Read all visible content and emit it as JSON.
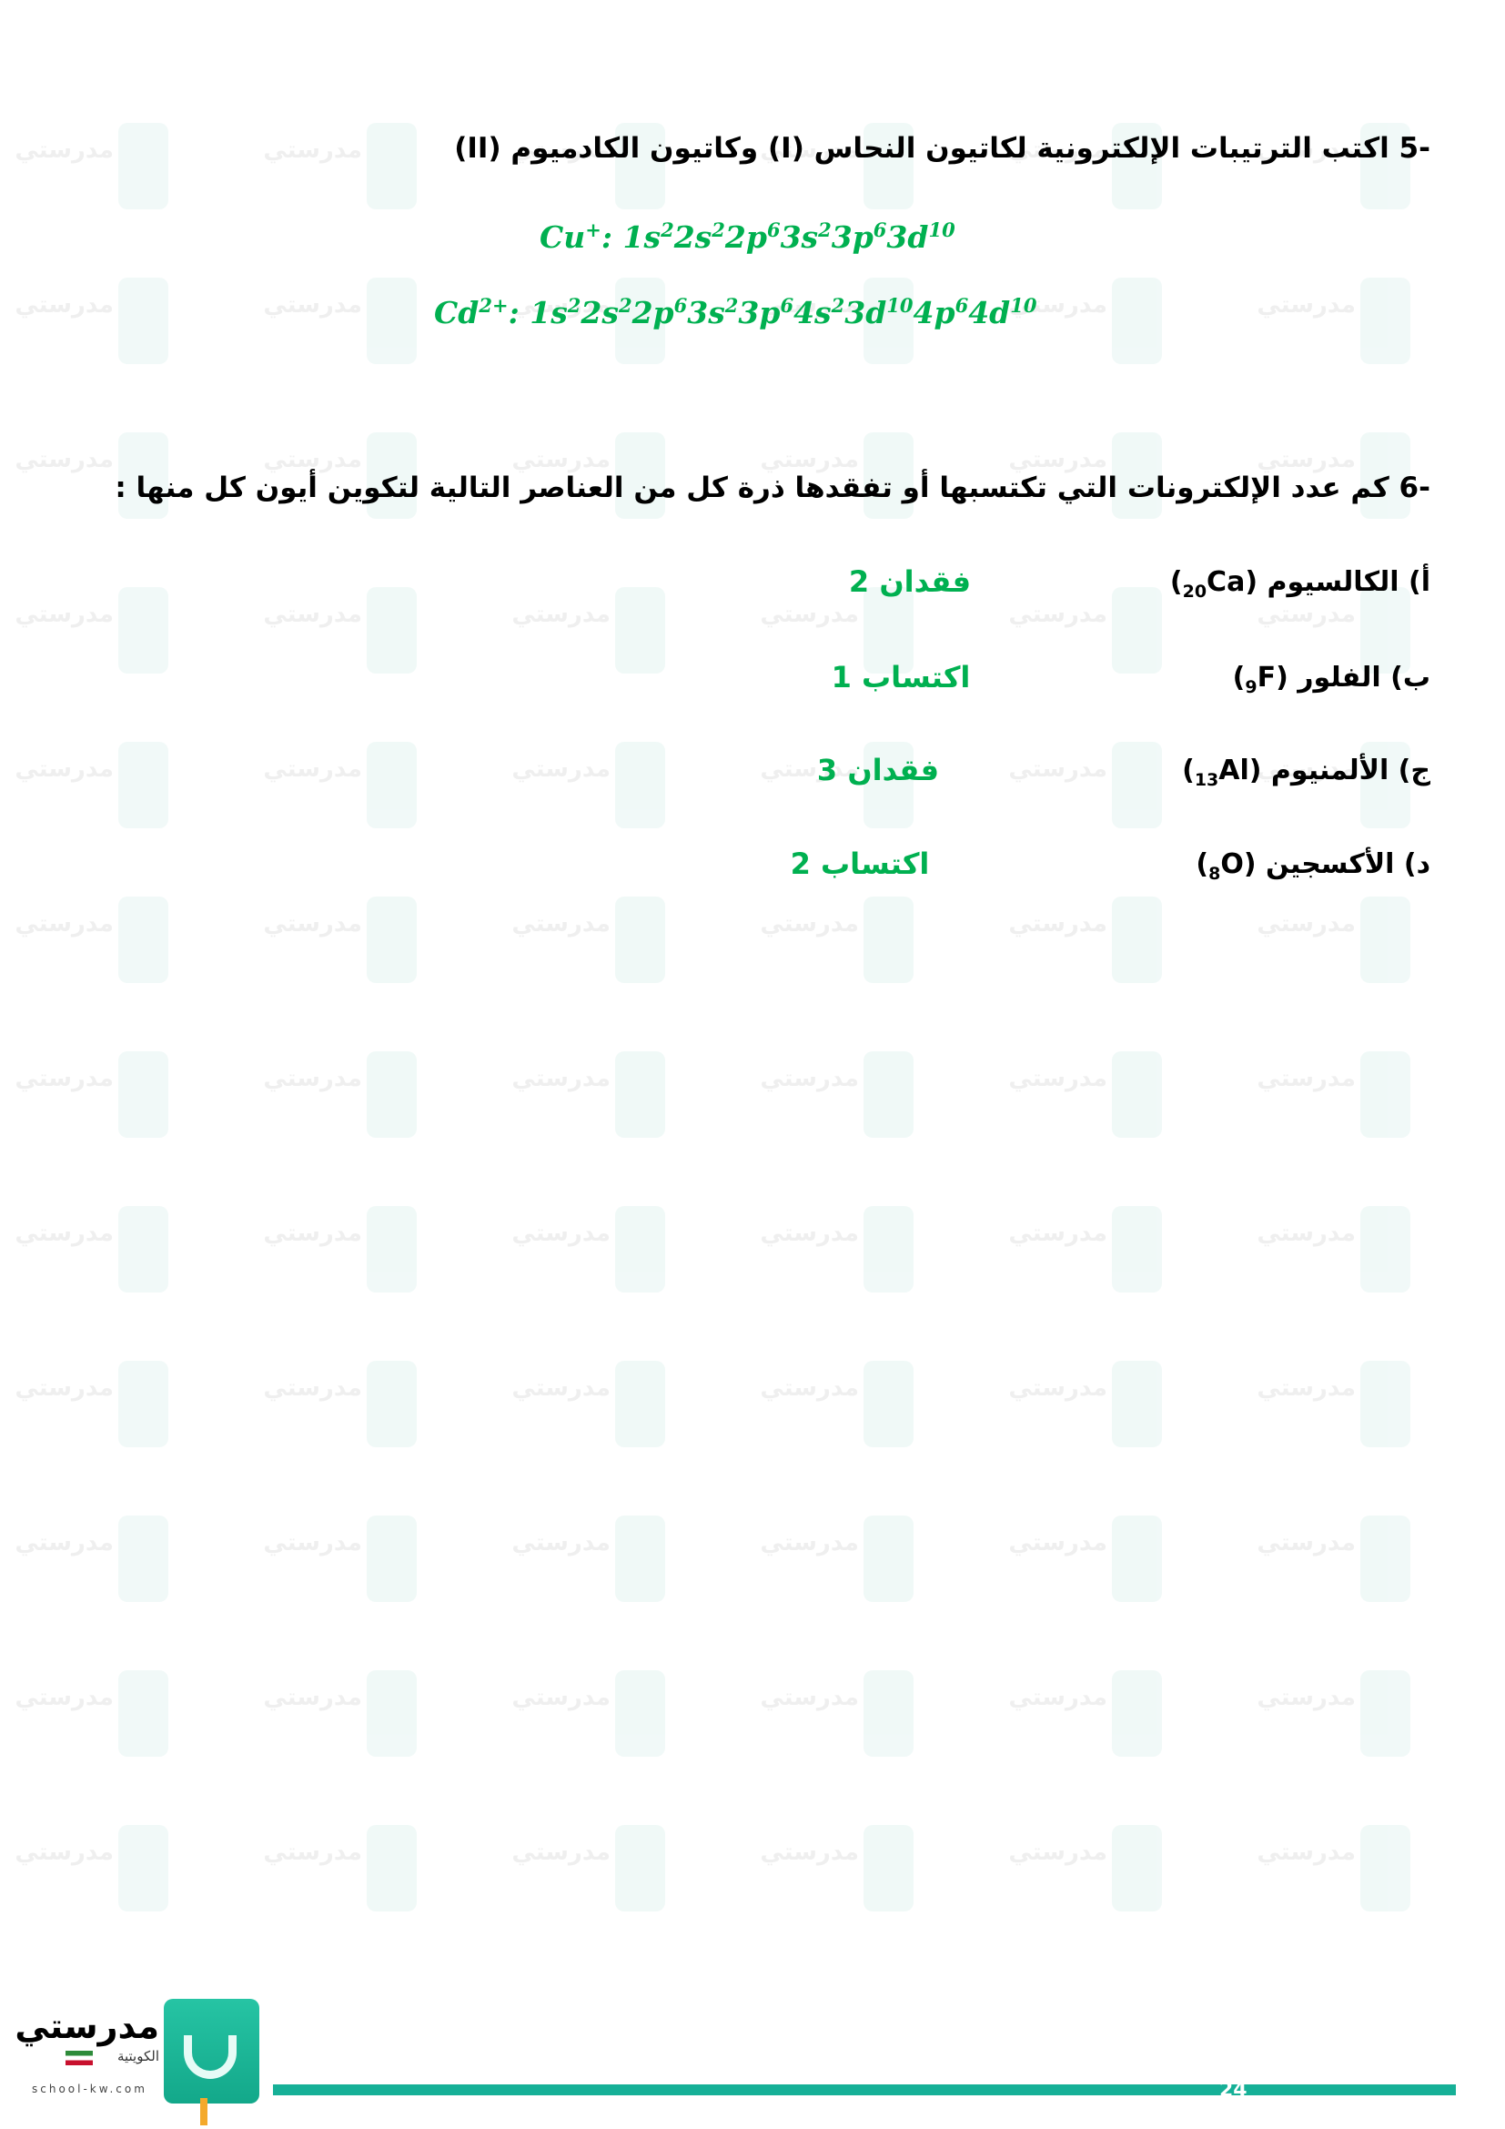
{
  "q5": {
    "number": "-5",
    "text": "اكتب الترتيبات الإلكترونية لكاتيون النحاس (I) وكاتيون الكادميوم (II)",
    "answers": [
      {
        "ion": "Cu",
        "charge": "+",
        "config": [
          [
            "1s",
            "2"
          ],
          [
            "2s",
            "2"
          ],
          [
            "2p",
            "6"
          ],
          [
            "3s",
            "2"
          ],
          [
            "3p",
            "6"
          ],
          [
            "3d",
            "10"
          ]
        ]
      },
      {
        "ion": "Cd",
        "charge": "2+",
        "config": [
          [
            "1s",
            "2"
          ],
          [
            "2s",
            "2"
          ],
          [
            "2p",
            "6"
          ],
          [
            "3s",
            "2"
          ],
          [
            "3p",
            "6"
          ],
          [
            "4s",
            "2"
          ],
          [
            "3d",
            "10"
          ],
          [
            "4p",
            "6"
          ],
          [
            "4d",
            "10"
          ]
        ]
      }
    ]
  },
  "q6": {
    "number": "-6",
    "text": "كم عدد الإلكترونات التي تكتسبها أو تفقدها ذرة كل من العناصر التالية لتكوين أيون كل منها :",
    "items": [
      {
        "letter": "أ)",
        "name": "الكالسيوم",
        "z": "20",
        "symbol": "Ca",
        "answer": "فقدان 2"
      },
      {
        "letter": "ب)",
        "name": "الفلور",
        "z": "9",
        "symbol": "F",
        "answer": "اكتساب 1"
      },
      {
        "letter": "ج)",
        "name": "الألمنيوم",
        "z": "13",
        "symbol": "Al",
        "answer": "فقدان 3"
      },
      {
        "letter": "د)",
        "name": "الأكسجين",
        "z": "8",
        "symbol": "O",
        "answer": "اكتساب 2"
      }
    ]
  },
  "footer": {
    "logo_name": "مدرستي",
    "logo_sub": "الكويتية",
    "logo_url": "school-kw.com",
    "page_number": "24"
  },
  "colors": {
    "answer": "#00b050",
    "accent": "#16b097"
  }
}
